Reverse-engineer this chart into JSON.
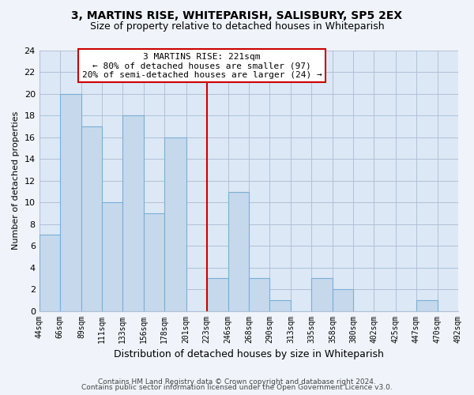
{
  "title": "3, MARTINS RISE, WHITEPARISH, SALISBURY, SP5 2EX",
  "subtitle": "Size of property relative to detached houses in Whiteparish",
  "xlabel": "Distribution of detached houses by size in Whiteparish",
  "ylabel": "Number of detached properties",
  "bin_edges": [
    44,
    66,
    89,
    111,
    133,
    156,
    178,
    201,
    223,
    246,
    268,
    290,
    313,
    335,
    358,
    380,
    402,
    425,
    447,
    470,
    492
  ],
  "bin_labels": [
    "44sqm",
    "66sqm",
    "89sqm",
    "111sqm",
    "133sqm",
    "156sqm",
    "178sqm",
    "201sqm",
    "223sqm",
    "246sqm",
    "268sqm",
    "290sqm",
    "313sqm",
    "335sqm",
    "358sqm",
    "380sqm",
    "402sqm",
    "425sqm",
    "447sqm",
    "470sqm",
    "492sqm"
  ],
  "counts": [
    7,
    20,
    17,
    10,
    18,
    9,
    16,
    0,
    3,
    11,
    3,
    1,
    0,
    3,
    2,
    0,
    0,
    0,
    1,
    0
  ],
  "bar_color": "#c6d9ec",
  "bar_edge_color": "#7aaed6",
  "vline_x": 223,
  "vline_color": "#cc0000",
  "annotation_text": "3 MARTINS RISE: 221sqm\n← 80% of detached houses are smaller (97)\n20% of semi-detached houses are larger (24) →",
  "annotation_box_color": "#ffffff",
  "annotation_box_edge_color": "#cc0000",
  "ylim": [
    0,
    24
  ],
  "yticks": [
    0,
    2,
    4,
    6,
    8,
    10,
    12,
    14,
    16,
    18,
    20,
    22,
    24
  ],
  "footer_line1": "Contains HM Land Registry data © Crown copyright and database right 2024.",
  "footer_line2": "Contains public sector information licensed under the Open Government Licence v3.0.",
  "fig_background_color": "#f0f4fa",
  "plot_background_color": "#dce8f5"
}
